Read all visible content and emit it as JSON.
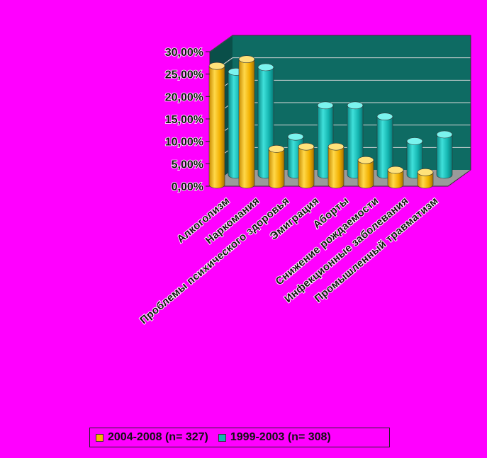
{
  "chart_data": {
    "type": "bar",
    "categories": [
      "Алкоголизм",
      "Наркомания",
      "Проблемы психического здоровья",
      "Эмиграция",
      "Аборты",
      "Снижение рождаемости",
      "Инфекционные заболевания",
      "Промышленный травматизм"
    ],
    "series": [
      {
        "name": "2004-2008 (n= 327)",
        "color": "#f5b800",
        "values": [
          26.5,
          28.0,
          8.0,
          8.5,
          8.5,
          5.5,
          3.3,
          2.8
        ]
      },
      {
        "name": "1999-2003 (n= 308)",
        "color": "#12b6b2",
        "values": [
          23.0,
          24.0,
          8.5,
          15.5,
          15.5,
          13.0,
          7.5,
          9.0
        ]
      }
    ],
    "yticks": [
      "0,00%",
      "5,00%",
      "10,00%",
      "15,00%",
      "20,00%",
      "25,00%",
      "30,00%"
    ],
    "ylim": [
      0,
      30
    ],
    "title": "",
    "xlabel": "",
    "ylabel": "",
    "grid": true,
    "legend_position": "bottom",
    "colors": {
      "background": "#ff00ff",
      "plot_back_wall": "#0e6b63",
      "plot_floor": "#9a9a9a",
      "plot_side_wall": "#0a4f49"
    }
  },
  "legend": {
    "items": [
      {
        "label": "2004-2008 (n= 327)",
        "color": "#f5b800"
      },
      {
        "label": "1999-2003 (n= 308)",
        "color": "#12b6b2"
      }
    ]
  }
}
